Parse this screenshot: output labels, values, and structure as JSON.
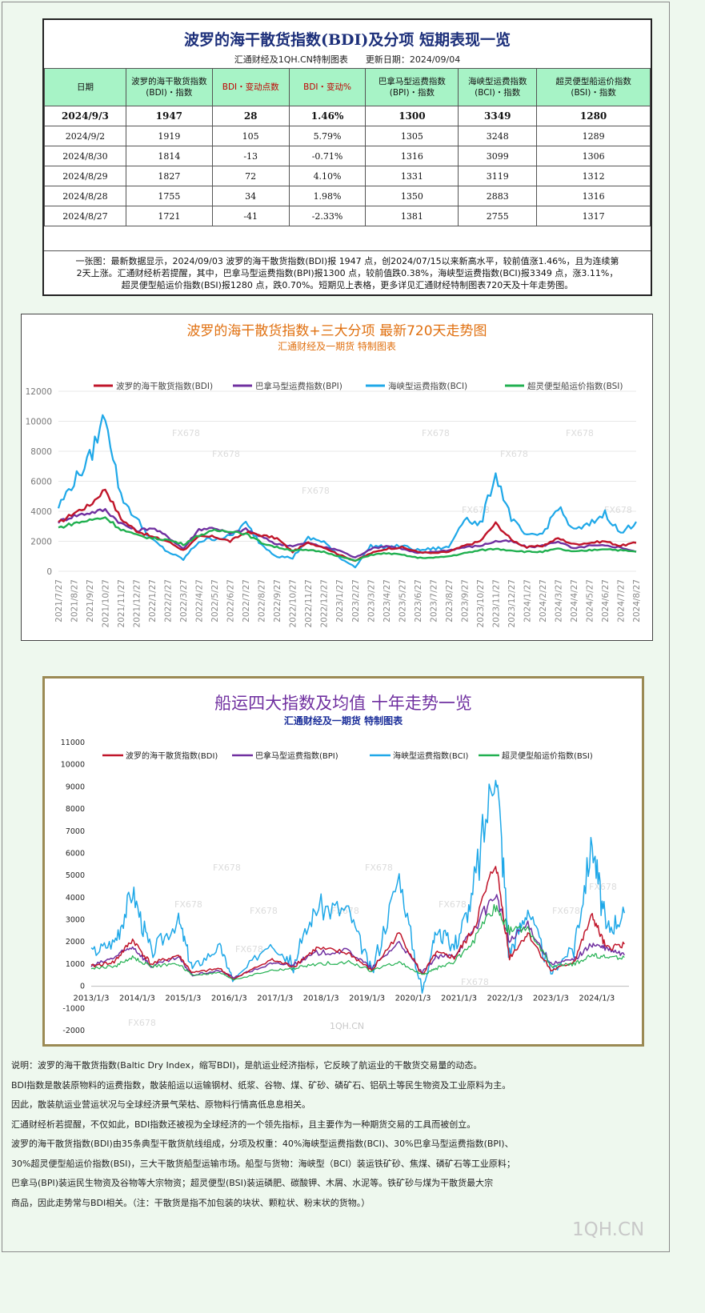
{
  "top": {
    "title": "波罗的海干散货指数(BDI)及分项 短期表现一览",
    "subtitle": "汇通财经及1QH.CN特制图表　　更新日期：2024/09/04",
    "headers": [
      [
        "日期"
      ],
      [
        "波罗的海干散货指数",
        "(BDI)・指数"
      ],
      [
        "BDI・变动点数"
      ],
      [
        "BDI・变动%"
      ],
      [
        "巴拿马型运费指数",
        "(BPI)・指数"
      ],
      [
        "海峡型运费指数",
        "(BCI)・指数"
      ],
      [
        "超灵便型船运价指数",
        "(BSI)・指数"
      ]
    ],
    "rows": [
      [
        "2024/9/3",
        "1947",
        "28",
        "1.46%",
        "1300",
        "3349",
        "1280"
      ],
      [
        "2024/9/2",
        "1919",
        "105",
        "5.79%",
        "1305",
        "3248",
        "1289"
      ],
      [
        "2024/8/30",
        "1814",
        "-13",
        "-0.71%",
        "1316",
        "3099",
        "1306"
      ],
      [
        "2024/8/29",
        "1827",
        "72",
        "4.10%",
        "1331",
        "3119",
        "1312"
      ],
      [
        "2024/8/28",
        "1755",
        "34",
        "1.98%",
        "1350",
        "2883",
        "1316"
      ],
      [
        "2024/8/27",
        "1721",
        "-41",
        "-2.33%",
        "1381",
        "2755",
        "1317"
      ]
    ],
    "note": [
      "一张图：最新数据显示，2024/09/03 波罗的海干散货指数(BDI)报 1947 点，创2024/07/15以来新高水平，较前值涨1.46%，且为连续第",
      "2天上涨。汇通财经析若提醒，其中，巴拿马型运费指数(BPI)报1300 点，较前值跌0.38%，海峡型运费指数(BCI)报3349 点，涨3.11%，",
      "超灵便型船运价指数(BSI)报1280 点，跌0.70%。短期见上表格，更多详见汇通财经特制图表720天及十年走势图。"
    ]
  },
  "colors": {
    "bdi": "#c0152a",
    "bpi": "#7030a0",
    "bci": "#1fa8e8",
    "bsi": "#21b050",
    "title_orange": "#e07010",
    "title_purple": "#7030a0",
    "sub_blue": "#1c2f9a"
  },
  "chart_data": [
    {
      "type": "line",
      "title": "波罗的海干散货指数+三大分项 最新720天走势图",
      "subtitle": "汇通财经及一期货 特制图表",
      "legend_position": "top",
      "ylim": [
        0,
        12000
      ],
      "yticks": [
        "12000",
        "10000",
        "8000",
        "6000",
        "4000",
        "2000",
        "0"
      ],
      "categories": [
        "2021/7/27",
        "2021/8/27",
        "2021/9/27",
        "2021/10/27",
        "2021/11/27",
        "2021/12/27",
        "2022/1/27",
        "2022/2/27",
        "2022/3/27",
        "2022/4/27",
        "2022/5/27",
        "2022/6/27",
        "2022/7/27",
        "2022/8/27",
        "2022/9/27",
        "2022/10/27",
        "2022/11/27",
        "2022/12/27",
        "2023/1/27",
        "2023/2/27",
        "2023/3/27",
        "2023/4/27",
        "2023/5/27",
        "2023/6/27",
        "2023/7/27",
        "2023/8/27",
        "2023/9/27",
        "2023/10/27",
        "2023/11/27",
        "2023/12/27",
        "2024/1/27",
        "2024/2/27",
        "2024/3/27",
        "2024/4/27",
        "2024/5/27",
        "2024/6/27",
        "2024/7/27",
        "2024/8/27"
      ],
      "watermarks": [
        "FX678",
        "FX678",
        "FX678",
        "FX678",
        "FX678",
        "FX678",
        "FX678",
        "FX678"
      ],
      "series": [
        {
          "name": "波罗的海干散货指数(BDI)",
          "key": "bdi",
          "values": [
            3200,
            3900,
            4400,
            5500,
            3500,
            2700,
            2300,
            2000,
            1400,
            2300,
            2300,
            2000,
            2600,
            2400,
            2200,
            1300,
            1900,
            1600,
            1100,
            700,
            1200,
            1500,
            1600,
            1300,
            1200,
            1300,
            1700,
            2000,
            3200,
            2100,
            1600,
            1700,
            2200,
            1800,
            1900,
            2000,
            1700,
            1900
          ]
        },
        {
          "name": "巴拿马型运费指数(BPI)",
          "key": "bpi",
          "values": [
            3300,
            3700,
            3900,
            4100,
            3200,
            2700,
            2900,
            2300,
            1500,
            2800,
            2900,
            2500,
            2800,
            2300,
            1800,
            1700,
            1900,
            1600,
            1400,
            900,
            1500,
            1700,
            1500,
            1200,
            1300,
            1400,
            1600,
            1700,
            2000,
            2000,
            1600,
            1700,
            2000,
            1500,
            1700,
            1700,
            1600,
            1300
          ]
        },
        {
          "name": "海峡型运费指数(BCI)",
          "key": "bci",
          "values": [
            4300,
            6000,
            7500,
            10500,
            5000,
            3500,
            2100,
            1300,
            800,
            2000,
            2200,
            2300,
            3200,
            1800,
            1000,
            900,
            2200,
            2000,
            900,
            300,
            1700,
            1600,
            1700,
            1400,
            1500,
            1600,
            3600,
            3000,
            6500,
            3500,
            2300,
            2500,
            4300,
            2700,
            3100,
            3900,
            2500,
            3300
          ]
        },
        {
          "name": "超灵便型船运价指数(BSI)",
          "key": "bsi",
          "values": [
            2900,
            3200,
            3400,
            3600,
            2800,
            2400,
            2200,
            2100,
            1800,
            2400,
            2700,
            2700,
            2500,
            1900,
            1600,
            1400,
            1400,
            1300,
            1000,
            700,
            1100,
            1200,
            1100,
            900,
            900,
            1000,
            1200,
            1400,
            1500,
            1400,
            1300,
            1300,
            1500,
            1300,
            1400,
            1500,
            1400,
            1300
          ]
        }
      ]
    },
    {
      "type": "line",
      "title": "船运四大指数及均值 十年走势一览",
      "subtitle": "汇通财经及一期货 特制图表",
      "legend_position": "top",
      "ylim": [
        -2000,
        11000
      ],
      "yticks": [
        "11000",
        "10000",
        "9000",
        "8000",
        "7000",
        "6000",
        "5000",
        "4000",
        "3000",
        "2000",
        "1000",
        "0",
        "-1000",
        "-2000"
      ],
      "xticks": [
        "2013/1/3",
        "2014/1/3",
        "2015/1/3",
        "2016/1/3",
        "2017/1/3",
        "2018/1/3",
        "2019/1/3",
        "2020/1/3",
        "2021/1/3",
        "2022/1/3",
        "2023/1/3",
        "2024/1/3"
      ],
      "xlim": [
        2013.0,
        2024.7
      ],
      "watermarks": [
        "FX678",
        "FX678",
        "FX678",
        "FX678",
        "FX678",
        "FX678",
        "FX678",
        "FX678",
        "FX678",
        "FX678",
        "FX678",
        "1QH.CN"
      ],
      "series": [
        {
          "name": "波罗的海干散货指数(BDI)",
          "key": "bdi",
          "x": [
            2013.0,
            2013.5,
            2013.9,
            2014.3,
            2014.9,
            2015.2,
            2015.8,
            2016.1,
            2016.9,
            2017.4,
            2017.9,
            2018.6,
            2019.1,
            2019.7,
            2020.2,
            2020.5,
            2020.9,
            2021.3,
            2021.8,
            2022.1,
            2022.5,
            2023.0,
            2023.5,
            2023.9,
            2024.2,
            2024.6
          ],
          "values": [
            900,
            1100,
            2100,
            1000,
            1400,
            600,
            800,
            300,
            1200,
            900,
            1700,
            1500,
            700,
            2400,
            500,
            1500,
            1300,
            2500,
            5600,
            1300,
            2400,
            700,
            1100,
            3200,
            1700,
            1900
          ]
        },
        {
          "name": "巴拿马型运费指数(BPI)",
          "key": "bpi",
          "x": [
            2013.0,
            2013.5,
            2013.9,
            2014.3,
            2014.9,
            2015.2,
            2015.8,
            2016.1,
            2016.9,
            2017.4,
            2017.9,
            2018.6,
            2019.1,
            2019.7,
            2020.2,
            2020.5,
            2020.9,
            2021.3,
            2021.8,
            2022.1,
            2022.5,
            2023.0,
            2023.5,
            2023.9,
            2024.2,
            2024.6
          ],
          "values": [
            900,
            1300,
            1800,
            900,
            1300,
            500,
            700,
            400,
            1000,
            1000,
            1500,
            1600,
            800,
            2000,
            600,
            1300,
            1400,
            2500,
            4200,
            2000,
            2800,
            1000,
            1200,
            1900,
            1700,
            1400
          ]
        },
        {
          "name": "海峡型运费指数(BCI)",
          "key": "bci",
          "x": [
            2013.0,
            2013.5,
            2013.9,
            2014.3,
            2014.9,
            2015.2,
            2015.8,
            2016.1,
            2016.9,
            2017.4,
            2017.9,
            2018.6,
            2019.1,
            2019.7,
            2020.2,
            2020.5,
            2020.9,
            2021.3,
            2021.8,
            2022.1,
            2022.5,
            2023.0,
            2023.5,
            2023.9,
            2024.2,
            2024.6
          ],
          "values": [
            1500,
            2000,
            4300,
            1500,
            3000,
            800,
            1800,
            200,
            2000,
            1000,
            3600,
            3400,
            600,
            5000,
            -300,
            2500,
            1800,
            4000,
            10200,
            1500,
            3500,
            600,
            1800,
            6500,
            2500,
            3300
          ]
        },
        {
          "name": "超灵便型船运价指数(BSI)",
          "key": "bsi",
          "x": [
            2013.0,
            2013.5,
            2013.9,
            2014.3,
            2014.9,
            2015.2,
            2015.8,
            2016.1,
            2016.9,
            2017.4,
            2017.9,
            2018.6,
            2019.1,
            2019.7,
            2020.2,
            2020.5,
            2020.9,
            2021.3,
            2021.8,
            2022.1,
            2022.5,
            2023.0,
            2023.5,
            2023.9,
            2024.2,
            2024.6
          ],
          "values": [
            800,
            900,
            1300,
            900,
            1000,
            500,
            600,
            300,
            700,
            800,
            1000,
            1100,
            700,
            1100,
            500,
            800,
            1100,
            2000,
            3600,
            2500,
            2600,
            900,
            1000,
            1400,
            1300,
            1300
          ]
        }
      ]
    }
  ],
  "desc": [
    "说明：波罗的海干散货指数(Baltic Dry Index，缩写BDI)，是航运业经济指标，它反映了航运业的干散货交易量的动态。",
    "BDI指数是散装原物料的运费指数，散装船运以运输钢材、纸浆、谷物、煤、矿砂、磷矿石、铝矾土等民生物资及工业原料为主。",
    "因此，散装航运业营运状况与全球经济景气荣枯、原物料行情高低息息相关。",
    "汇通财经析若提醒，不仅如此，BDI指数还被视为全球经济的一个领先指标，且主要作为一种期货交易的工具而被创立。",
    "波罗的海干散货指数(BDI)由35条典型干散货航线组成，分项及权重：40%海峡型运费指数(BCI)、30%巴拿马型运费指数(BPI)、",
    "30%超灵便型船运价指数(BSI)，三大干散货船型运输市场。船型与货物：海峡型（BCI）装运铁矿砂、焦煤、磷矿石等工业原料；",
    "巴拿马(BPI)装运民生物资及谷物等大宗物资；超灵便型(BSI)装运磷肥、碳酸钾、木屑、水泥等。铁矿砂与煤为干散货最大宗",
    "商品，因此走势常与BDI相关。（注：干散货是指不加包装的块状、颗粒状、粉末状的货物。）"
  ],
  "footer_logo": "1QH.CN"
}
